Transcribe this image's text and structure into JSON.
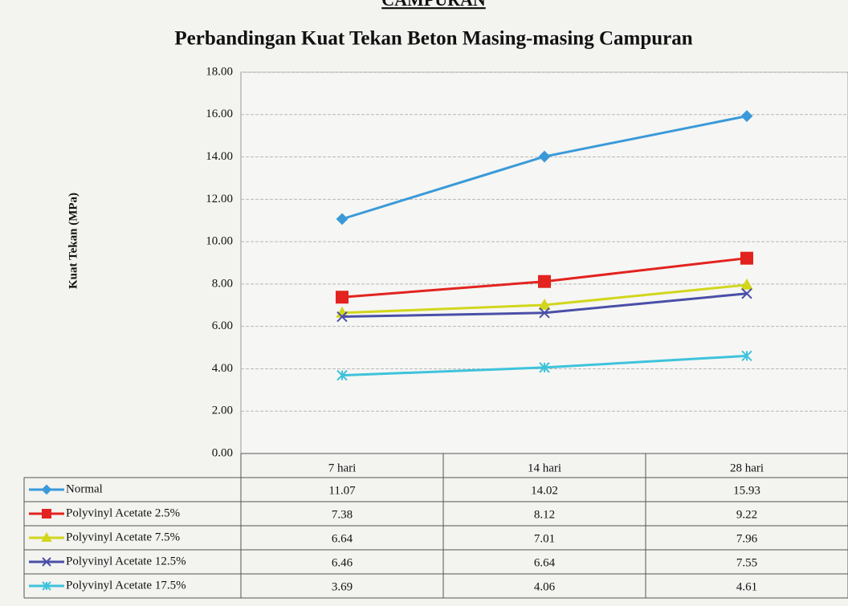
{
  "header": "CAMPURAN",
  "chart_data": {
    "type": "line",
    "title": "Perbandingan Kuat Tekan Beton Masing-masing Campuran",
    "y_label": "Kuat Tekan (MPa)",
    "categories": [
      "7 hari",
      "14 hari",
      "28 hari"
    ],
    "series": [
      {
        "name": "Normal",
        "color": "#3a9ad9",
        "marker": "diamond",
        "values": [
          11.07,
          14.02,
          15.93
        ]
      },
      {
        "name": "Polyvinyl Acetate 2.5%",
        "color": "#e3231f",
        "marker": "square",
        "values": [
          7.38,
          8.12,
          9.22
        ]
      },
      {
        "name": "Polyvinyl Acetate 7.5%",
        "color": "#d2d61c",
        "marker": "triangle",
        "values": [
          6.64,
          7.01,
          7.96
        ]
      },
      {
        "name": "Polyvinyl Acetate 12.5%",
        "color": "#4a4fa8",
        "marker": "x",
        "values": [
          6.46,
          6.64,
          7.55
        ]
      },
      {
        "name": "Polyvinyl Acetate 17.5%",
        "color": "#3ec3db",
        "marker": "star",
        "values": [
          3.69,
          4.06,
          4.61
        ]
      }
    ],
    "ylim": [
      0,
      18
    ],
    "yticks": [
      {
        "value": 0,
        "label": "0.00"
      },
      {
        "value": 2,
        "label": "2.00"
      },
      {
        "value": 4,
        "label": "4.00"
      },
      {
        "value": 6,
        "label": "6.00"
      },
      {
        "value": 8,
        "label": "8.00"
      },
      {
        "value": 10,
        "label": "10.00"
      },
      {
        "value": 12,
        "label": "12.00"
      },
      {
        "value": 14,
        "label": "14.00"
      },
      {
        "value": 16,
        "label": "16.00"
      },
      {
        "value": 18,
        "label": "18.00"
      }
    ],
    "grid": true
  }
}
